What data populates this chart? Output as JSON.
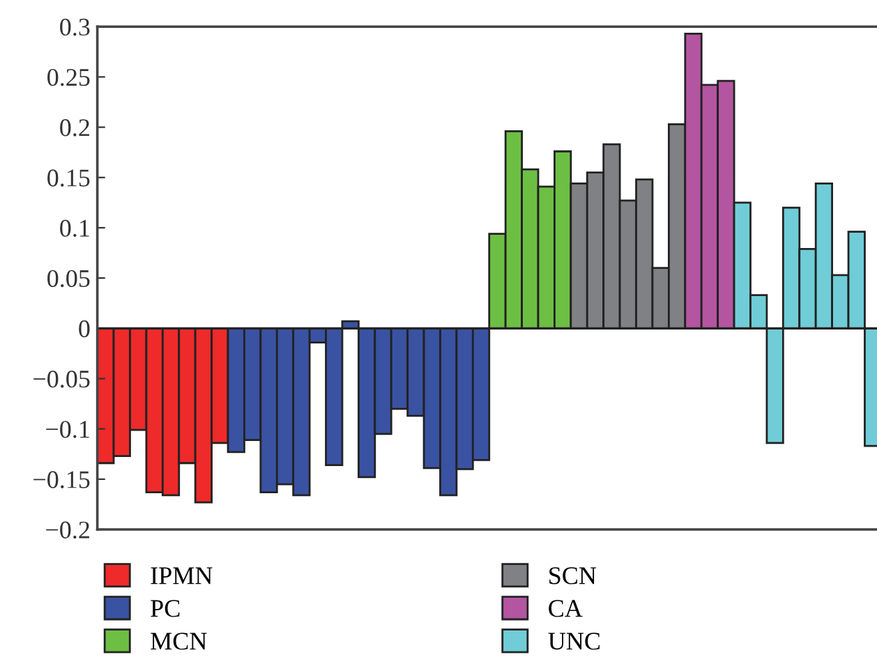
{
  "chart_data": {
    "type": "bar",
    "categories": [
      null,
      null,
      null,
      null,
      null,
      null,
      null,
      null,
      null,
      null,
      null,
      null,
      null,
      null,
      null,
      null,
      null,
      null,
      null,
      null,
      null,
      null,
      null,
      null,
      null,
      null,
      null,
      null,
      null,
      null,
      null,
      null,
      null,
      null,
      null,
      null,
      null,
      null,
      null,
      null,
      null,
      null,
      null,
      null,
      null,
      null,
      null,
      null
    ],
    "series": [
      {
        "name": "IPMN",
        "color": "#ee2a2a",
        "values": [
          -0.134,
          -0.127,
          -0.101,
          -0.163,
          -0.166,
          -0.134,
          -0.173,
          -0.114,
          null,
          null,
          null,
          null,
          null,
          null,
          null,
          null,
          null,
          null,
          null,
          null,
          null,
          null,
          null,
          null,
          null,
          null,
          null,
          null,
          null,
          null,
          null,
          null,
          null,
          null,
          null,
          null,
          null,
          null,
          null,
          null,
          null,
          null,
          null,
          null,
          null,
          null,
          null,
          null
        ]
      },
      {
        "name": "PC",
        "color": "#3a52a2",
        "values": [
          null,
          null,
          null,
          null,
          null,
          null,
          null,
          null,
          -0.123,
          -0.111,
          -0.163,
          -0.155,
          -0.166,
          -0.014,
          -0.136,
          0.007,
          -0.148,
          -0.105,
          -0.08,
          -0.087,
          -0.139,
          -0.166,
          -0.14,
          -0.131,
          null,
          null,
          null,
          null,
          null,
          null,
          null,
          null,
          null,
          null,
          null,
          null,
          null,
          null,
          null,
          null,
          null,
          null,
          null,
          null,
          null,
          null,
          null,
          null
        ]
      },
      {
        "name": "MCN",
        "color": "#6dbf44",
        "values": [
          null,
          null,
          null,
          null,
          null,
          null,
          null,
          null,
          null,
          null,
          null,
          null,
          null,
          null,
          null,
          null,
          null,
          null,
          null,
          null,
          null,
          null,
          null,
          null,
          0.094,
          0.196,
          0.158,
          0.141,
          0.176,
          null,
          null,
          null,
          null,
          null,
          null,
          null,
          null,
          null,
          null,
          null,
          null,
          null,
          null,
          null,
          null,
          null,
          null,
          null
        ]
      },
      {
        "name": "SCN",
        "color": "#808184",
        "values": [
          null,
          null,
          null,
          null,
          null,
          null,
          null,
          null,
          null,
          null,
          null,
          null,
          null,
          null,
          null,
          null,
          null,
          null,
          null,
          null,
          null,
          null,
          null,
          null,
          null,
          null,
          null,
          null,
          null,
          0.144,
          0.155,
          0.183,
          0.127,
          0.148,
          0.06,
          0.203,
          null,
          null,
          null,
          null,
          null,
          null,
          null,
          null,
          null,
          null,
          null,
          null
        ]
      },
      {
        "name": "CA",
        "color": "#b455a1",
        "values": [
          null,
          null,
          null,
          null,
          null,
          null,
          null,
          null,
          null,
          null,
          null,
          null,
          null,
          null,
          null,
          null,
          null,
          null,
          null,
          null,
          null,
          null,
          null,
          null,
          null,
          null,
          null,
          null,
          null,
          null,
          null,
          null,
          null,
          null,
          null,
          null,
          0.293,
          0.242,
          0.246,
          null,
          null,
          null,
          null,
          null,
          null,
          null,
          null,
          null
        ]
      },
      {
        "name": "UNC",
        "color": "#70cdd8",
        "values": [
          null,
          null,
          null,
          null,
          null,
          null,
          null,
          null,
          null,
          null,
          null,
          null,
          null,
          null,
          null,
          null,
          null,
          null,
          null,
          null,
          null,
          null,
          null,
          null,
          null,
          null,
          null,
          null,
          null,
          null,
          null,
          null,
          null,
          null,
          null,
          null,
          null,
          null,
          null,
          0.125,
          0.033,
          -0.114,
          0.12,
          0.079,
          0.144,
          0.053,
          0.096,
          -0.117
        ]
      }
    ],
    "ylim": [
      -0.2,
      0.3
    ],
    "yticks": [
      {
        "value": -0.2,
        "label": "−0.2"
      },
      {
        "value": -0.15,
        "label": "−0.15"
      },
      {
        "value": -0.1,
        "label": "−0.1"
      },
      {
        "value": -0.05,
        "label": "−0.05"
      },
      0,
      0.05,
      0.1,
      0.15,
      0.2,
      0.25,
      0.3
    ],
    "legend": "bottom"
  }
}
